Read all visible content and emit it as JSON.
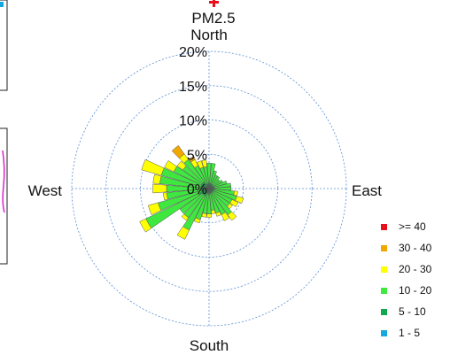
{
  "chart_data": {
    "type": "pollution-rose",
    "title": "PM2.5",
    "directions": {
      "north": "North",
      "east": "East",
      "south": "South",
      "west": "West"
    },
    "radial_ticks": [
      {
        "value": 0,
        "label": "0%"
      },
      {
        "value": 5,
        "label": "5%"
      },
      {
        "value": 10,
        "label": "10%"
      },
      {
        "value": 15,
        "label": "15%"
      },
      {
        "value": 20,
        "label": "20%"
      }
    ],
    "rmax": 20,
    "sector_width_deg": 10,
    "bins": [
      {
        "label": ">= 40",
        "color": "#e8101c"
      },
      {
        "label": "30 - 40",
        "color": "#f0a800"
      },
      {
        "label": "20 - 30",
        "color": "#ffff00"
      },
      {
        "label": "10 - 20",
        "color": "#3ee83e"
      },
      {
        "label": "5 - 10",
        "color": "#12a84e"
      },
      {
        "label": "1 - 5",
        "color": "#15a8e0"
      }
    ],
    "sectors": [
      {
        "dir": 0,
        "stack": [
          0.2,
          0.5,
          3.0,
          0.0,
          0.0,
          0.0
        ]
      },
      {
        "dir": 10,
        "stack": [
          0.2,
          0.5,
          3.0,
          0.0,
          0.0,
          0.0
        ]
      },
      {
        "dir": 20,
        "stack": [
          0.2,
          0.5,
          2.0,
          0.0,
          0.0,
          0.0
        ]
      },
      {
        "dir": 30,
        "stack": [
          0.2,
          0.5,
          1.5,
          0.0,
          0.0,
          0.0
        ]
      },
      {
        "dir": 40,
        "stack": [
          0.2,
          0.5,
          1.5,
          0.0,
          0.0,
          0.0
        ]
      },
      {
        "dir": 50,
        "stack": [
          0.2,
          0.5,
          1.2,
          0.0,
          0.0,
          0.0
        ]
      },
      {
        "dir": 60,
        "stack": [
          0.2,
          0.5,
          1.5,
          0.0,
          0.0,
          0.0
        ]
      },
      {
        "dir": 70,
        "stack": [
          0.2,
          0.5,
          2.0,
          0.0,
          0.0,
          0.0
        ]
      },
      {
        "dir": 80,
        "stack": [
          0.2,
          0.5,
          2.5,
          0.0,
          0.0,
          0.0
        ]
      },
      {
        "dir": 90,
        "stack": [
          0.2,
          0.5,
          2.5,
          0.0,
          0.0,
          0.0
        ]
      },
      {
        "dir": 100,
        "stack": [
          0.2,
          0.5,
          3.0,
          0.5,
          0.0,
          0.0
        ]
      },
      {
        "dir": 110,
        "stack": [
          0.2,
          0.5,
          3.5,
          1.0,
          0.0,
          0.0
        ]
      },
      {
        "dir": 120,
        "stack": [
          0.2,
          0.5,
          3.0,
          1.0,
          0.0,
          0.0
        ]
      },
      {
        "dir": 130,
        "stack": [
          0.2,
          0.5,
          3.0,
          0.5,
          0.0,
          0.0
        ]
      },
      {
        "dir": 140,
        "stack": [
          0.2,
          0.5,
          4.0,
          1.0,
          0.0,
          0.0
        ]
      },
      {
        "dir": 150,
        "stack": [
          0.2,
          0.5,
          3.5,
          1.0,
          0.0,
          0.0
        ]
      },
      {
        "dir": 160,
        "stack": [
          0.2,
          0.5,
          3.0,
          0.5,
          0.0,
          0.0
        ]
      },
      {
        "dir": 170,
        "stack": [
          0.2,
          0.5,
          2.5,
          0.5,
          0.0,
          0.0
        ]
      },
      {
        "dir": 180,
        "stack": [
          0.2,
          0.5,
          3.0,
          0.5,
          0.0,
          0.0
        ]
      },
      {
        "dir": 190,
        "stack": [
          0.2,
          0.5,
          3.0,
          0.5,
          0.0,
          0.0
        ]
      },
      {
        "dir": 200,
        "stack": [
          0.2,
          0.5,
          4.0,
          0.5,
          0.0,
          0.0
        ]
      },
      {
        "dir": 210,
        "stack": [
          0.2,
          1.0,
          5.5,
          1.5,
          0.0,
          0.0
        ]
      },
      {
        "dir": 220,
        "stack": [
          0.2,
          1.0,
          4.0,
          0.5,
          0.0,
          0.0
        ]
      },
      {
        "dir": 230,
        "stack": [
          0.2,
          1.0,
          4.0,
          0.0,
          0.0,
          0.0
        ]
      },
      {
        "dir": 240,
        "stack": [
          0.2,
          1.5,
          8.5,
          1.0,
          0.0,
          0.0
        ]
      },
      {
        "dir": 250,
        "stack": [
          0.2,
          1.0,
          6.5,
          1.5,
          0.0,
          0.0
        ]
      },
      {
        "dir": 260,
        "stack": [
          0.2,
          1.0,
          5.0,
          0.5,
          0.0,
          0.0
        ]
      },
      {
        "dir": 270,
        "stack": [
          0.2,
          1.0,
          5.0,
          2.0,
          0.0,
          0.0
        ]
      },
      {
        "dir": 280,
        "stack": [
          0.2,
          1.0,
          6.0,
          1.0,
          0.0,
          0.0
        ]
      },
      {
        "dir": 290,
        "stack": [
          0.2,
          1.0,
          6.0,
          3.0,
          0.0,
          0.0
        ]
      },
      {
        "dir": 300,
        "stack": [
          0.2,
          1.0,
          4.5,
          1.5,
          0.0,
          0.0
        ]
      },
      {
        "dir": 310,
        "stack": [
          0.2,
          1.0,
          3.5,
          1.0,
          0.0,
          0.0
        ]
      },
      {
        "dir": 320,
        "stack": [
          0.2,
          1.0,
          4.0,
          1.0,
          1.5,
          0.0
        ]
      },
      {
        "dir": 330,
        "stack": [
          0.2,
          0.5,
          3.0,
          1.0,
          0.5,
          0.0
        ]
      },
      {
        "dir": 340,
        "stack": [
          0.2,
          0.5,
          2.5,
          1.0,
          0.0,
          0.0
        ]
      },
      {
        "dir": 350,
        "stack": [
          0.2,
          0.5,
          2.5,
          1.0,
          0.0,
          0.0
        ]
      }
    ],
    "sector_stack_order": [
      "1 - 5",
      "5 - 10",
      "10 - 20",
      "20 - 30",
      "30 - 40",
      ">= 40"
    ]
  },
  "colors": {
    "grid": "#5b8fd6",
    "mark_outline": "#555555",
    "title_marker": "#e8101c"
  }
}
